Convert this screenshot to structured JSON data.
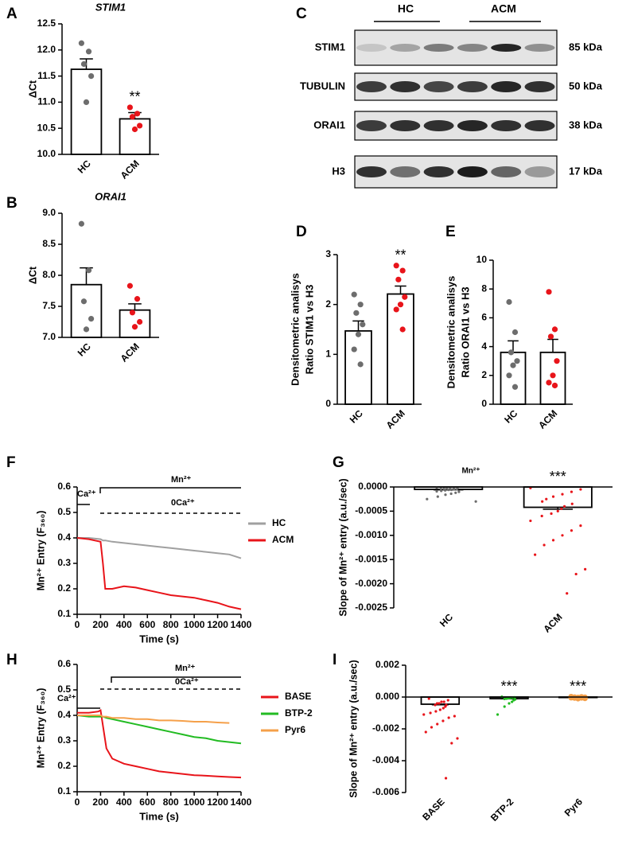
{
  "chart_data": [
    {
      "type": "bar",
      "label": "A",
      "title": "STIM1",
      "ylabel": "ΔCt",
      "categories": [
        "HC",
        "ACM"
      ],
      "values": [
        11.63,
        10.68
      ],
      "errors": [
        0.2,
        0.12
      ],
      "colors": [
        "#6d6d6d",
        "#e8141a"
      ],
      "bar_color": "#ffffff",
      "points": [
        [
          12.13,
          11.97,
          11.73,
          11.5,
          11.0
        ],
        [
          10.9,
          10.78,
          10.72,
          10.55,
          10.48
        ]
      ],
      "significance": [
        null,
        "**"
      ],
      "ylim": [
        10,
        12.5
      ],
      "yticks": [
        {
          "value": 10,
          "label": "10.0"
        },
        10.5,
        {
          "value": 11,
          "label": "11.0"
        },
        11.5,
        {
          "value": 12,
          "label": "12.0"
        },
        12.5
      ]
    },
    {
      "type": "bar",
      "label": "B",
      "title": "ORAI1",
      "ylabel": "ΔCt",
      "categories": [
        "HC",
        "ACM"
      ],
      "values": [
        7.85,
        7.44
      ],
      "errors": [
        0.27,
        0.1
      ],
      "colors": [
        "#6d6d6d",
        "#e8141a"
      ],
      "bar_color": "#ffffff",
      "points": [
        [
          8.83,
          8.08,
          7.58,
          7.3,
          7.13
        ],
        [
          7.83,
          7.62,
          7.4,
          7.25,
          7.17
        ]
      ],
      "significance": [
        null,
        null
      ],
      "ylim": [
        7,
        9
      ],
      "yticks": [
        {
          "value": 7,
          "label": "7.0"
        },
        7.5,
        {
          "value": 8,
          "label": "8.0"
        },
        8.5,
        {
          "value": 9,
          "label": "9.0"
        }
      ]
    },
    {
      "type": "bar",
      "label": "D",
      "ylabel": [
        "Densitometric analisys",
        "Ratio STIM1 vs H3"
      ],
      "categories": [
        "HC",
        "ACM"
      ],
      "values": [
        1.47,
        2.21
      ],
      "errors": [
        0.2,
        0.16
      ],
      "colors": [
        "#6d6d6d",
        "#e8141a"
      ],
      "bar_color": "#ffffff",
      "points": [
        [
          2.2,
          2.0,
          1.83,
          1.6,
          1.4,
          1.1,
          0.8
        ],
        [
          2.78,
          2.68,
          2.5,
          2.15,
          2.0,
          1.9,
          1.5
        ]
      ],
      "significance": [
        null,
        "**"
      ],
      "ylim": [
        0,
        3
      ],
      "yticks": [
        0,
        1,
        2,
        3
      ]
    },
    {
      "type": "bar",
      "label": "E",
      "ylabel": [
        "Densitometric analisys",
        "Ratio ORAI1 vs H3"
      ],
      "categories": [
        "HC",
        "ACM"
      ],
      "values": [
        3.6,
        3.6
      ],
      "errors": [
        0.8,
        0.9
      ],
      "colors": [
        "#6d6d6d",
        "#e8141a"
      ],
      "bar_color": "#ffffff",
      "points": [
        [
          7.1,
          5.0,
          3.6,
          3.0,
          2.7,
          2.0,
          1.2
        ],
        [
          7.8,
          5.2,
          4.7,
          3.0,
          2.0,
          1.5,
          1.3
        ]
      ],
      "significance": [
        null,
        null
      ],
      "ylim": [
        0,
        10
      ],
      "yticks": [
        0,
        2,
        4,
        6,
        8,
        10
      ]
    },
    {
      "type": "line",
      "label": "F",
      "ylabel": "Mn²⁺ Entry (F₃₆₀)",
      "xlabel": "Time (s)",
      "mn_label": "Mn²⁺",
      "zero_ca_label": "0Ca²⁺",
      "ca_label": "Ca²⁺",
      "x": [
        0,
        100,
        200,
        220,
        240,
        300,
        400,
        500,
        600,
        700,
        800,
        900,
        1000,
        1100,
        1200,
        1300,
        1400
      ],
      "series": [
        {
          "name": "HC",
          "color": "#a0a0a0",
          "values": [
            0.4,
            0.4,
            0.395,
            0.39,
            0.39,
            0.385,
            0.38,
            0.375,
            0.37,
            0.365,
            0.36,
            0.355,
            0.35,
            0.345,
            0.34,
            0.335,
            0.32
          ]
        },
        {
          "name": "ACM",
          "color": "#e8141a",
          "values": [
            0.4,
            0.395,
            0.385,
            0.3,
            0.2,
            0.2,
            0.21,
            0.205,
            0.195,
            0.185,
            0.175,
            0.17,
            0.165,
            0.155,
            0.145,
            0.13,
            0.12
          ]
        }
      ],
      "xlim": [
        0,
        1400
      ],
      "xticks": [
        0,
        200,
        400,
        600,
        800,
        1000,
        1200,
        1400
      ],
      "ylim": [
        0.1,
        0.6
      ],
      "yticks": [
        0.1,
        0.2,
        0.3,
        0.4,
        0.5,
        0.6
      ]
    },
    {
      "type": "bar",
      "label": "G",
      "title": "Mn²⁺",
      "ylabel": "Slope of Mn²⁺ entry (a.u./sec)",
      "categories": [
        "HC",
        "ACM"
      ],
      "values": [
        -5e-05,
        -0.00042
      ],
      "errors": [
        1e-05,
        4e-05
      ],
      "colors": [
        "#6d6d6d",
        "#e8141a"
      ],
      "bar_color": "#ffffff",
      "points": [
        [
          -1e-05,
          -2e-05,
          -2e-05,
          -3e-05,
          -3e-05,
          -4e-05,
          -4e-05,
          -5e-05,
          -5e-05,
          -6e-05,
          -6e-05,
          -7e-05,
          -8e-05,
          -9e-05,
          -0.0001,
          -0.00012,
          -0.00014,
          -0.00016,
          -0.0002,
          -0.00025,
          -0.0003
        ],
        [
          -2e-05,
          -5e-05,
          -0.0001,
          -0.00015,
          -0.0002,
          -0.00025,
          -0.0003,
          -0.00035,
          -0.0004,
          -0.00045,
          -0.0005,
          -0.00055,
          -0.0006,
          -0.0007,
          -0.0008,
          -0.0009,
          -0.001,
          -0.0011,
          -0.0012,
          -0.0014,
          -0.0017,
          -0.0018,
          -0.0022
        ]
      ],
      "significance": [
        null,
        "***"
      ],
      "ylim": [
        -0.0025,
        0
      ],
      "yticks": [
        {
          "value": 0,
          "label": "0.0000"
        },
        -0.0005,
        {
          "value": -0.001,
          "label": "-0.0010"
        },
        -0.0015,
        {
          "value": -0.002,
          "label": "-0.0020"
        },
        -0.0025
      ]
    },
    {
      "type": "line",
      "label": "H",
      "ylabel": "Mn²⁺ Entry (F₃₆₀)",
      "xlabel": "Time (s)",
      "mn_label": "Mn²⁺",
      "zero_ca_label": "0Ca²⁺",
      "ca_label": "Ca²⁺",
      "x": [
        0,
        100,
        180,
        200,
        220,
        250,
        300,
        400,
        500,
        600,
        700,
        800,
        900,
        1000,
        1100,
        1200,
        1300,
        1400
      ],
      "series": [
        {
          "name": "BASE",
          "color": "#e8141a",
          "values": [
            0.41,
            0.41,
            0.415,
            0.42,
            0.36,
            0.27,
            0.23,
            0.21,
            0.2,
            0.19,
            0.18,
            0.175,
            0.17,
            0.165,
            0.163,
            0.16,
            0.158,
            0.156
          ]
        },
        {
          "name": "BTP-2",
          "color": "#22bb22",
          "values": [
            0.4,
            0.395,
            0.395,
            0.395,
            0.395,
            0.39,
            0.385,
            0.375,
            0.365,
            0.355,
            0.345,
            0.335,
            0.325,
            0.315,
            0.31,
            0.3,
            0.295,
            0.29
          ]
        },
        {
          "name": "Pyr6",
          "color": "#f5a04a",
          "values": [
            0.4,
            0.4,
            0.4,
            0.4,
            0.395,
            0.395,
            0.39,
            0.39,
            0.385,
            0.385,
            0.38,
            0.38,
            0.378,
            0.375,
            0.375,
            0.372,
            0.37,
            null
          ]
        }
      ],
      "xlim": [
        0,
        1400
      ],
      "xticks": [
        0,
        200,
        400,
        600,
        800,
        1000,
        1200,
        1400
      ],
      "ylim": [
        0.1,
        0.6
      ],
      "yticks": [
        0.1,
        0.2,
        0.3,
        0.4,
        0.5,
        0.6
      ]
    },
    {
      "type": "bar",
      "label": "I",
      "ylabel": "Slope of Mn²⁺ entry (a.u./sec)",
      "categories": [
        "BASE",
        "BTP-2",
        "Pyr6"
      ],
      "values": [
        -0.00045,
        -0.0001,
        -3e-05
      ],
      "errors": [
        4e-05,
        1e-05,
        5e-06
      ],
      "colors": [
        "#e8141a",
        "#22bb22",
        "#f5a04a"
      ],
      "bar_color": "#ffffff",
      "points": [
        [
          -0.0001,
          -0.0002,
          -0.0003,
          -0.0003,
          -0.0004,
          -0.0004,
          -0.0005,
          -0.0005,
          -0.0006,
          -0.0007,
          -0.0008,
          -0.0009,
          -0.001,
          -0.0011,
          -0.0012,
          -0.0013,
          -0.0015,
          -0.0017,
          -0.0019,
          -0.0022,
          -0.0026,
          -0.0029,
          -0.0051
        ],
        [
          2e-05,
          -2e-05,
          -4e-05,
          -6e-05,
          -8e-05,
          -0.0001,
          -0.00012,
          -0.00015,
          -0.0002,
          -0.0003,
          -0.0004,
          -0.0006,
          -0.0011
        ],
        [
          2e-05,
          1e-05,
          -1e-05,
          -2e-05,
          -3e-05,
          -4e-05,
          -5e-05,
          -6e-05,
          -8e-05,
          -0.0001
        ]
      ],
      "significance": [
        null,
        "***",
        "***"
      ],
      "ylim": [
        -0.006,
        0.002
      ],
      "yticks": [
        0.002,
        {
          "value": 0,
          "label": "0.000"
        },
        -0.002,
        -0.004,
        -0.006
      ]
    }
  ],
  "blot": {
    "label": "C",
    "groups": [
      "HC",
      "ACM"
    ],
    "rows": [
      {
        "protein": "STIM1",
        "size": "85 kDa"
      },
      {
        "protein": "TUBULIN",
        "size": "50 kDa"
      },
      {
        "protein": "ORAI1",
        "size": "38 kDa"
      },
      {
        "protein": "H3",
        "size": "17 kDa"
      }
    ]
  }
}
